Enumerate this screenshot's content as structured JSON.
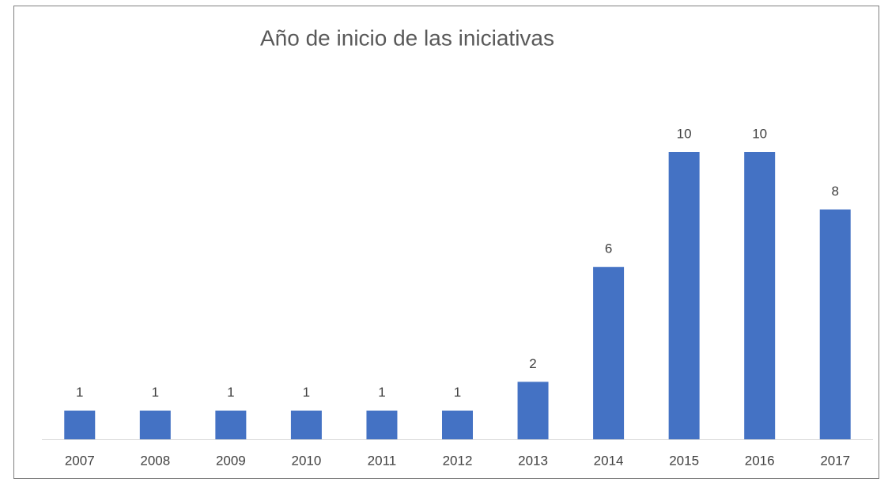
{
  "chart_data": {
    "type": "bar",
    "title": "Año de inicio de las iniciativas",
    "categories": [
      "2007",
      "2008",
      "2009",
      "2010",
      "2011",
      "2012",
      "2013",
      "2014",
      "2015",
      "2016",
      "2017"
    ],
    "values": [
      1,
      1,
      1,
      1,
      1,
      1,
      2,
      6,
      10,
      10,
      8
    ],
    "color": "#4472c4",
    "data_labels": true,
    "grid": false
  }
}
